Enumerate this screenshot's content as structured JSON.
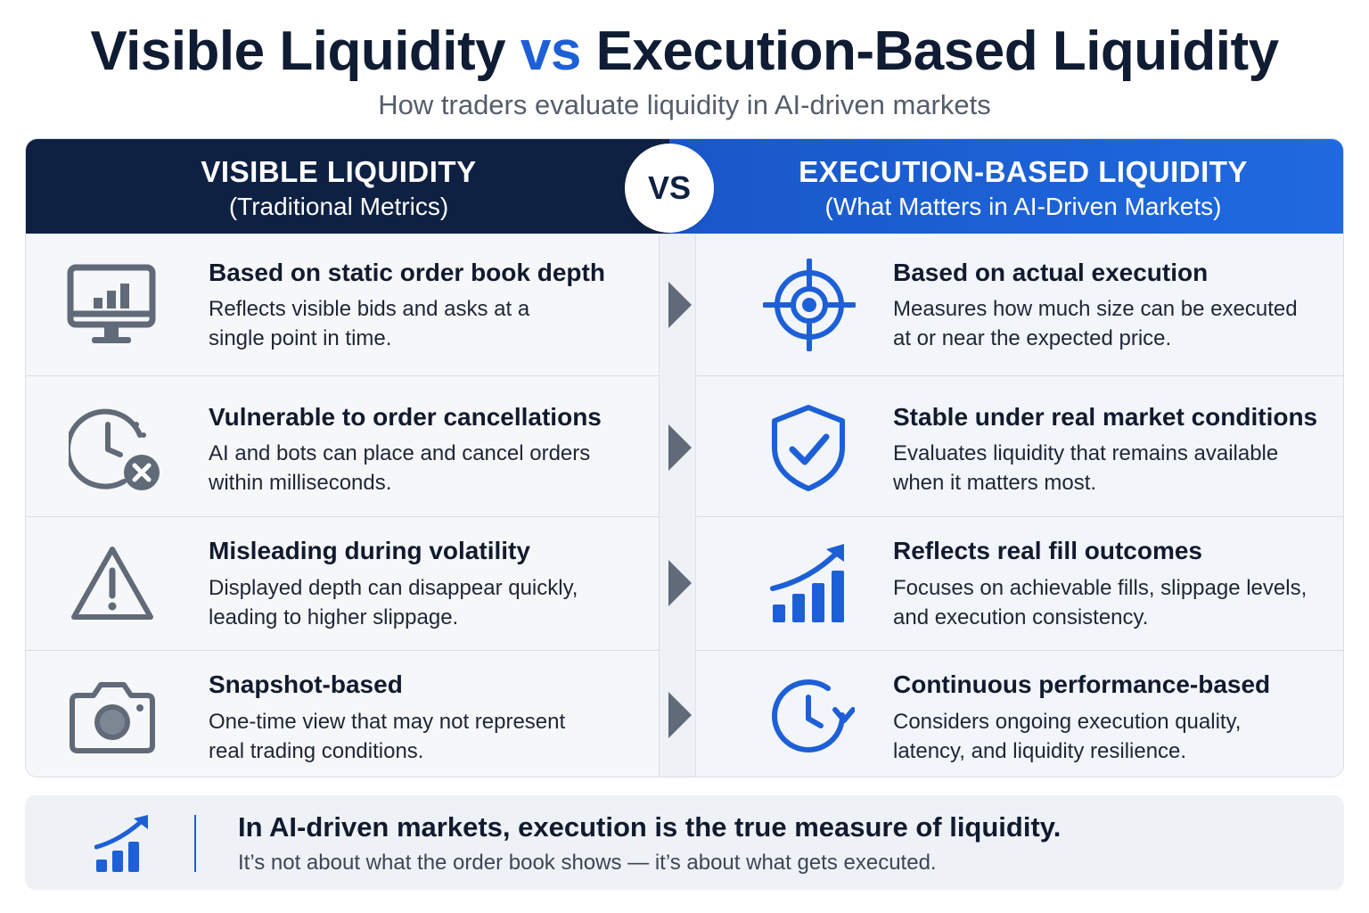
{
  "title": {
    "part1": "Visible Liquidity",
    "vs": "vs",
    "part2": "Execution-Based Liquidity"
  },
  "subtitle": "How traders evaluate liquidity in AI-driven markets",
  "left_header": {
    "title": "VISIBLE LIQUIDITY",
    "subtitle": "(Traditional Metrics)"
  },
  "vs_badge": "VS",
  "right_header": {
    "title": "EXECUTION-BASED LIQUIDITY",
    "subtitle": "(What Matters in AI-Driven Markets)"
  },
  "rows": [
    {
      "left": {
        "icon": "monitor-chart-icon",
        "heading": "Based on static order book depth",
        "line1": "Reflects visible bids and asks at a",
        "line2": "single point in time."
      },
      "right": {
        "icon": "target-crosshair-icon",
        "heading": "Based on actual execution",
        "line1": "Measures how much size can be executed",
        "line2": "at or near the expected price."
      }
    },
    {
      "left": {
        "icon": "clock-cancel-icon",
        "heading": "Vulnerable to order cancellations",
        "line1": "AI and bots can place and cancel orders",
        "line2": "within milliseconds."
      },
      "right": {
        "icon": "shield-check-icon",
        "heading": "Stable under real market conditions",
        "line1": "Evaluates liquidity that remains available",
        "line2": "when it matters most."
      }
    },
    {
      "left": {
        "icon": "warning-triangle-icon",
        "heading": "Misleading during volatility",
        "line1": "Displayed depth can disappear quickly,",
        "line2": "leading to higher slippage."
      },
      "right": {
        "icon": "growth-chart-icon",
        "heading": "Reflects real fill outcomes",
        "line1": "Focuses on achievable fills, slippage levels,",
        "line2": "and execution consistency."
      }
    },
    {
      "left": {
        "icon": "camera-icon",
        "heading": "Snapshot-based",
        "line1": "One-time view that may not represent",
        "line2": "real trading conditions."
      },
      "right": {
        "icon": "clock-refresh-icon",
        "heading": "Continuous performance-based",
        "line1": "Considers ongoing execution quality,",
        "line2": "latency, and liquidity resilience."
      }
    }
  ],
  "footer": {
    "icon": "growth-chart-icon",
    "main": "In AI-driven markets,  execution is the true measure of liquidity.",
    "sub": "It’s not about what the order book shows — it’s about what gets executed."
  },
  "colors": {
    "navy": "#0f2142",
    "accent_blue": "#1d5fd6",
    "icon_gray": "#606a78"
  }
}
